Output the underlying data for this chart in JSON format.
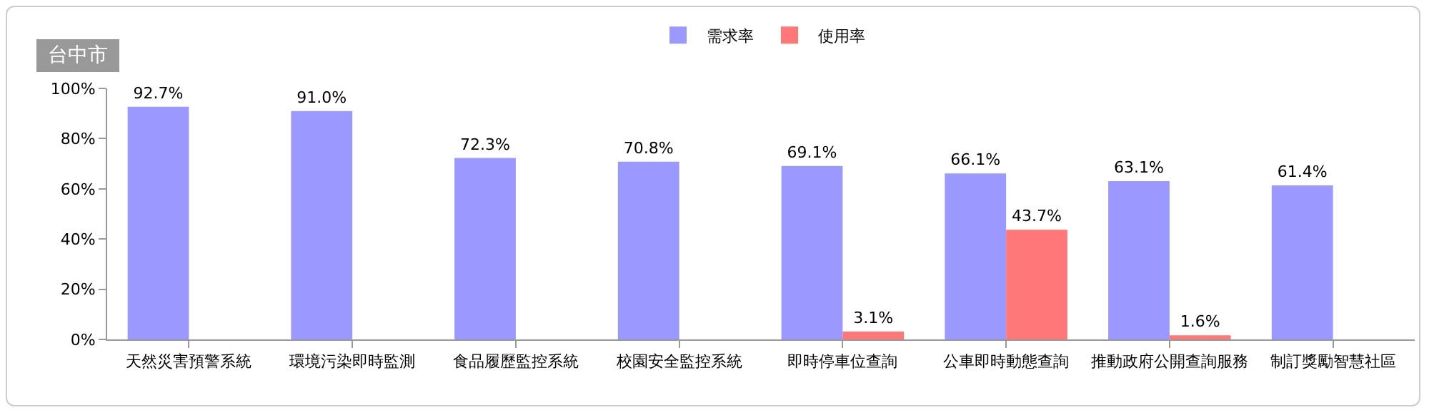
{
  "chart_data": {
    "type": "bar",
    "title": "台中市",
    "categories": [
      "天然災害預警系統",
      "環境污染即時監測",
      "食品履歷監控系統",
      "校園安全監控系統",
      "即時停車位查詢",
      "公車即時動態查詢",
      "推動政府公開查詢服務",
      "制訂獎勵智慧社區"
    ],
    "series": [
      {
        "name": "需求率",
        "color": "#9999ff",
        "values": [
          92.7,
          91.0,
          72.3,
          70.8,
          69.1,
          66.1,
          63.1,
          61.4
        ],
        "value_labels": [
          "92.7%",
          "91.0%",
          "72.3%",
          "70.8%",
          "69.1%",
          "66.1%",
          "63.1%",
          "61.4%"
        ]
      },
      {
        "name": "使用率",
        "color": "#ff7777",
        "values": [
          null,
          null,
          null,
          null,
          3.1,
          43.7,
          1.6,
          null
        ],
        "value_labels": [
          null,
          null,
          null,
          null,
          "3.1%",
          "43.7%",
          "1.6%",
          null
        ]
      }
    ],
    "ylim": [
      0,
      100
    ],
    "yticks": [
      {
        "value": 0,
        "label": "0%"
      },
      {
        "value": 20,
        "label": "20%"
      },
      {
        "value": 40,
        "label": "40%"
      },
      {
        "value": 60,
        "label": "60%"
      },
      {
        "value": 80,
        "label": "80%"
      },
      {
        "value": 100,
        "label": "100%"
      }
    ],
    "grid": false,
    "legend": "top"
  }
}
